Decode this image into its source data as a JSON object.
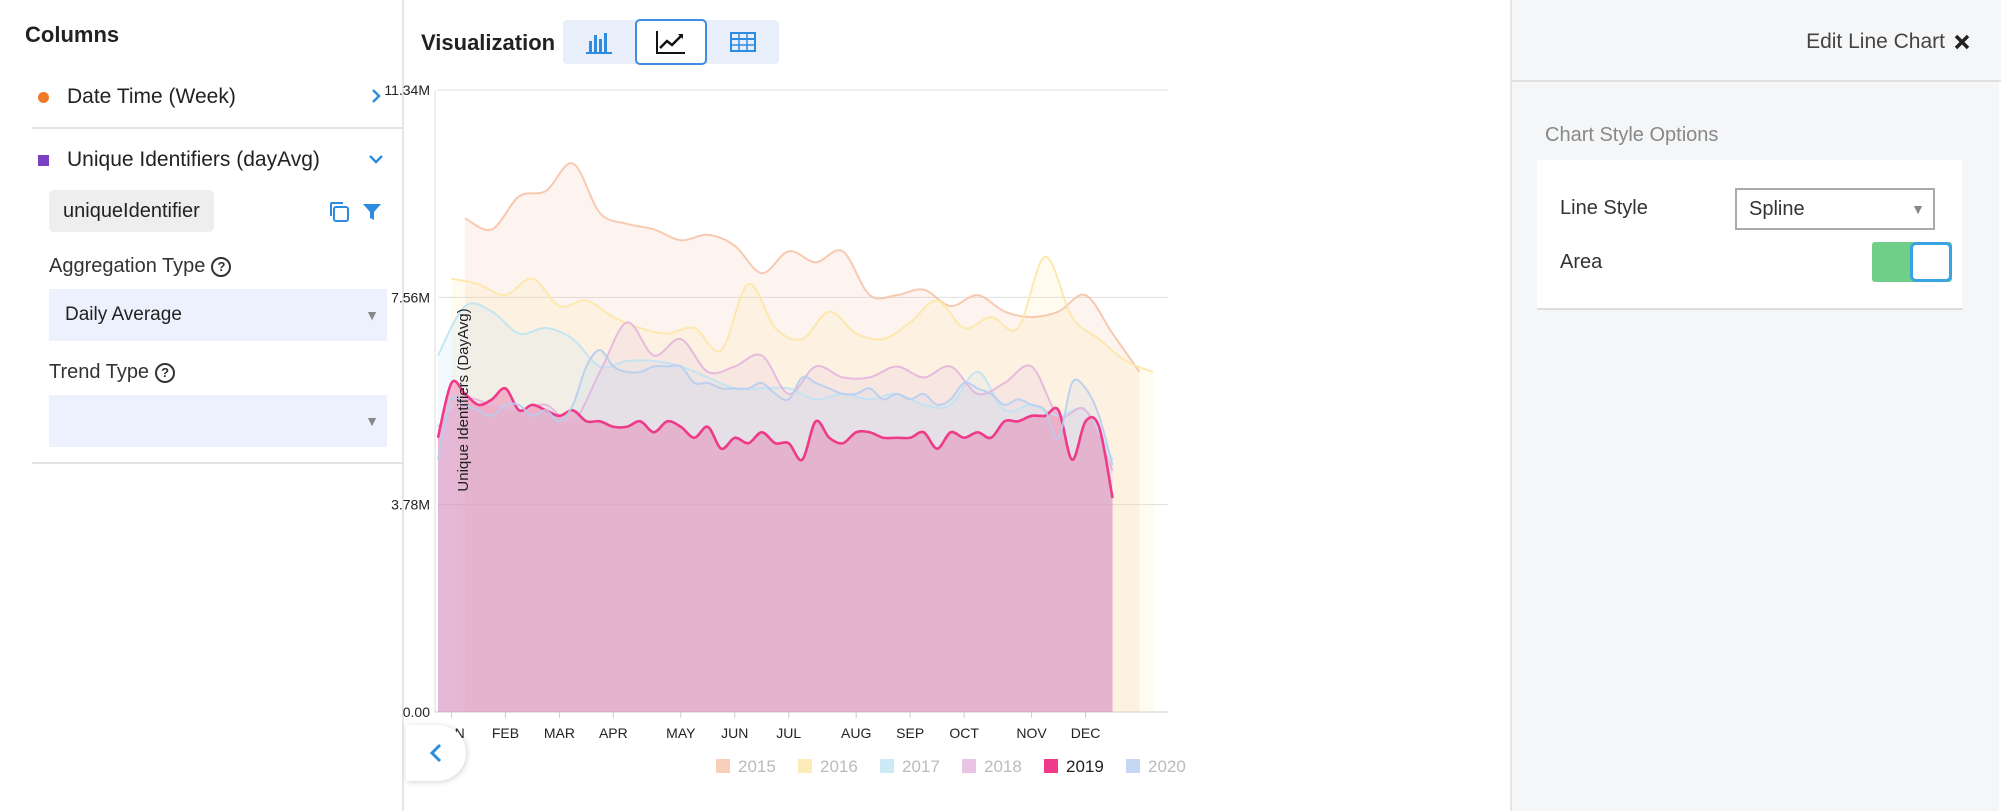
{
  "left_panel": {
    "title": "Columns",
    "columns": [
      {
        "label": "Date Time (Week)",
        "color": "#f07a28"
      },
      {
        "label": "Unique Identifiers (dayAvg)",
        "color": "#7b3fc4"
      }
    ],
    "identifier_chip": "uniqueIdentifier",
    "aggregation_label": "Aggregation Type",
    "aggregation_value": "Daily Average",
    "trend_label": "Trend Type",
    "trend_value": ""
  },
  "visualization": {
    "title": "Visualization",
    "tabs": [
      "bar-chart",
      "line-chart",
      "table"
    ],
    "active_tab": "line-chart"
  },
  "edit_panel": {
    "title": "Edit Line Chart",
    "section_title": "Chart Style Options",
    "line_style_label": "Line Style",
    "line_style_value": "Spline",
    "area_label": "Area",
    "area_enabled": true
  },
  "chart_data": {
    "type": "line",
    "ylabel": "Unique Identifiers (DayAvg)",
    "y_ticks": [
      "0.00",
      "3.78M",
      "7.56M",
      "11.34M"
    ],
    "ylim": [
      0,
      11.34
    ],
    "x_ticks": [
      "JAN",
      "FEB",
      "MAR",
      "APR",
      "MAY",
      "JUN",
      "JUL",
      "AUG",
      "SEP",
      "OCT",
      "NOV",
      "DEC"
    ],
    "x_tick_weeks": [
      1,
      5,
      9,
      13,
      18,
      22,
      26,
      31,
      35,
      39,
      44,
      48
    ],
    "area": true,
    "legend_position": "bottom",
    "series": [
      {
        "name": "2015",
        "color": "#f6c4a8",
        "x": [
          2,
          4,
          6,
          8,
          10,
          12,
          14,
          16,
          18,
          20,
          22,
          24,
          26,
          28,
          30,
          32,
          34,
          36,
          38,
          40,
          42,
          44,
          46,
          48,
          50,
          52
        ],
        "values": [
          9.0,
          8.8,
          9.4,
          9.5,
          10.0,
          9.1,
          8.9,
          8.8,
          8.6,
          8.7,
          8.5,
          8.0,
          8.4,
          8.2,
          8.4,
          7.6,
          7.6,
          7.7,
          7.4,
          7.6,
          7.3,
          7.2,
          7.3,
          7.6,
          6.9,
          6.2
        ]
      },
      {
        "name": "2016",
        "color": "#fde7a6",
        "x": [
          1,
          3,
          5,
          7,
          9,
          11,
          13,
          15,
          17,
          19,
          21,
          23,
          25,
          27,
          29,
          31,
          33,
          35,
          37,
          39,
          41,
          43,
          45,
          47,
          49,
          51,
          53
        ],
        "values": [
          7.9,
          7.8,
          7.6,
          7.9,
          7.4,
          7.5,
          7.2,
          7.0,
          6.9,
          7.0,
          6.6,
          7.8,
          7.0,
          6.8,
          7.3,
          6.9,
          6.8,
          7.1,
          7.5,
          7.0,
          7.2,
          7.0,
          8.3,
          7.2,
          6.8,
          6.4,
          6.2
        ]
      },
      {
        "name": "2017",
        "color": "#bfe3f3",
        "x": [
          0,
          2,
          4,
          6,
          8,
          10,
          12,
          14,
          16,
          18,
          20,
          22,
          24,
          26,
          28,
          30,
          32,
          34,
          36,
          38,
          40,
          42,
          44,
          46,
          48,
          50
        ],
        "values": [
          6.5,
          7.4,
          7.3,
          6.9,
          7.0,
          6.8,
          6.3,
          6.4,
          6.4,
          6.3,
          6.1,
          5.9,
          5.9,
          5.9,
          5.7,
          5.8,
          5.7,
          5.8,
          5.6,
          5.6,
          6.2,
          5.5,
          5.6,
          5.4,
          5.5,
          4.6
        ]
      },
      {
        "name": "2018",
        "color": "#e3b5df",
        "x": [
          0,
          2,
          4,
          6,
          8,
          10,
          12,
          14,
          16,
          18,
          20,
          22,
          24,
          26,
          28,
          30,
          32,
          34,
          36,
          38,
          40,
          42,
          44,
          46,
          48,
          50
        ],
        "values": [
          5.2,
          5.7,
          5.6,
          5.5,
          5.6,
          5.3,
          6.2,
          7.1,
          6.5,
          6.8,
          6.2,
          6.3,
          6.5,
          5.8,
          6.3,
          6.1,
          6.1,
          6.3,
          6.1,
          6.3,
          5.8,
          6.0,
          6.3,
          5.4,
          5.5,
          4.4
        ]
      },
      {
        "name": "2019",
        "color": "#ef3a8a",
        "x": [
          0,
          1,
          2,
          3,
          4,
          5,
          6,
          7,
          8,
          9,
          10,
          11,
          12,
          13,
          14,
          15,
          16,
          17,
          18,
          19,
          20,
          21,
          22,
          23,
          24,
          25,
          26,
          27,
          28,
          29,
          30,
          31,
          32,
          33,
          34,
          35,
          36,
          37,
          38,
          39,
          40,
          41,
          42,
          43,
          44,
          45,
          46,
          47,
          48,
          49,
          50
        ],
        "values": [
          5.0,
          6.0,
          5.8,
          5.6,
          5.7,
          5.9,
          5.5,
          5.6,
          5.5,
          5.4,
          5.5,
          5.3,
          5.3,
          5.2,
          5.2,
          5.3,
          5.1,
          5.3,
          5.2,
          5.0,
          5.2,
          4.8,
          5.0,
          4.9,
          5.1,
          4.9,
          4.9,
          4.6,
          5.3,
          5.0,
          4.9,
          5.1,
          5.1,
          5.0,
          5.0,
          5.0,
          5.1,
          4.8,
          5.1,
          5.0,
          5.1,
          5.0,
          5.3,
          5.3,
          5.4,
          5.4,
          5.5,
          4.6,
          5.3,
          5.2,
          3.9
        ]
      },
      {
        "name": "2020",
        "color": "#b8cdf0",
        "x": [
          0,
          1,
          2,
          3,
          4,
          5,
          6,
          7,
          8,
          9,
          10,
          11,
          12,
          13,
          14,
          15,
          16,
          17,
          18,
          19,
          20,
          21,
          22,
          23,
          24,
          25,
          26,
          27,
          28,
          29,
          30,
          31,
          32,
          33,
          34,
          35,
          36,
          37,
          38,
          39,
          40,
          41,
          42,
          43,
          44,
          45,
          46,
          47,
          48,
          49,
          50
        ],
        "values": [
          4.6,
          5.7,
          5.6,
          5.5,
          5.4,
          5.6,
          5.6,
          5.4,
          5.5,
          5.3,
          5.6,
          6.3,
          6.6,
          6.3,
          6.2,
          6.2,
          6.3,
          6.3,
          6.3,
          6.0,
          6.0,
          5.9,
          5.9,
          5.9,
          6.0,
          5.8,
          5.7,
          6.1,
          6.0,
          5.9,
          5.8,
          5.8,
          5.9,
          5.7,
          5.8,
          5.7,
          5.8,
          5.6,
          5.7,
          6.0,
          5.9,
          5.8,
          5.6,
          5.7,
          5.6,
          5.5,
          5.0,
          6.0,
          5.9,
          5.4,
          4.5
        ]
      }
    ]
  }
}
